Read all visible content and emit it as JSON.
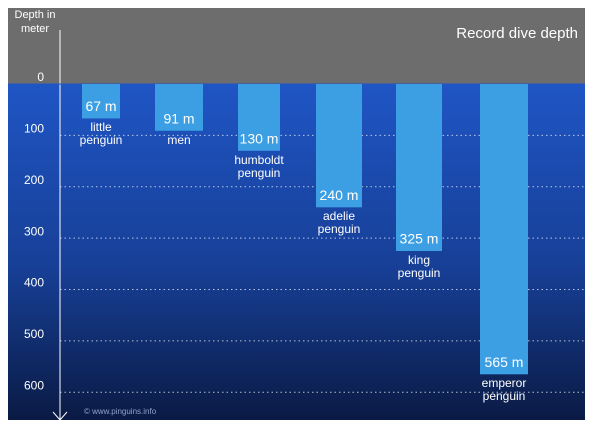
{
  "chart_data": {
    "type": "bar",
    "title": "Record dive depth",
    "y_label": "Depth in meter",
    "credit": "© www.pinguins.info",
    "categories": [
      "little penguin",
      "men",
      "humboldt penguin",
      "adelie penguin",
      "king penguin",
      "emperor penguin"
    ],
    "values": [
      67,
      91,
      130,
      240,
      325,
      565
    ],
    "value_labels": [
      "67 m",
      "91 m",
      "130 m",
      "240 m",
      "325 m",
      "565 m"
    ],
    "color": "#3d9fe3",
    "ylim": [
      0,
      650
    ],
    "yticks": [
      0,
      100,
      200,
      300,
      400,
      500,
      600
    ],
    "inverted": true,
    "grid": true
  }
}
